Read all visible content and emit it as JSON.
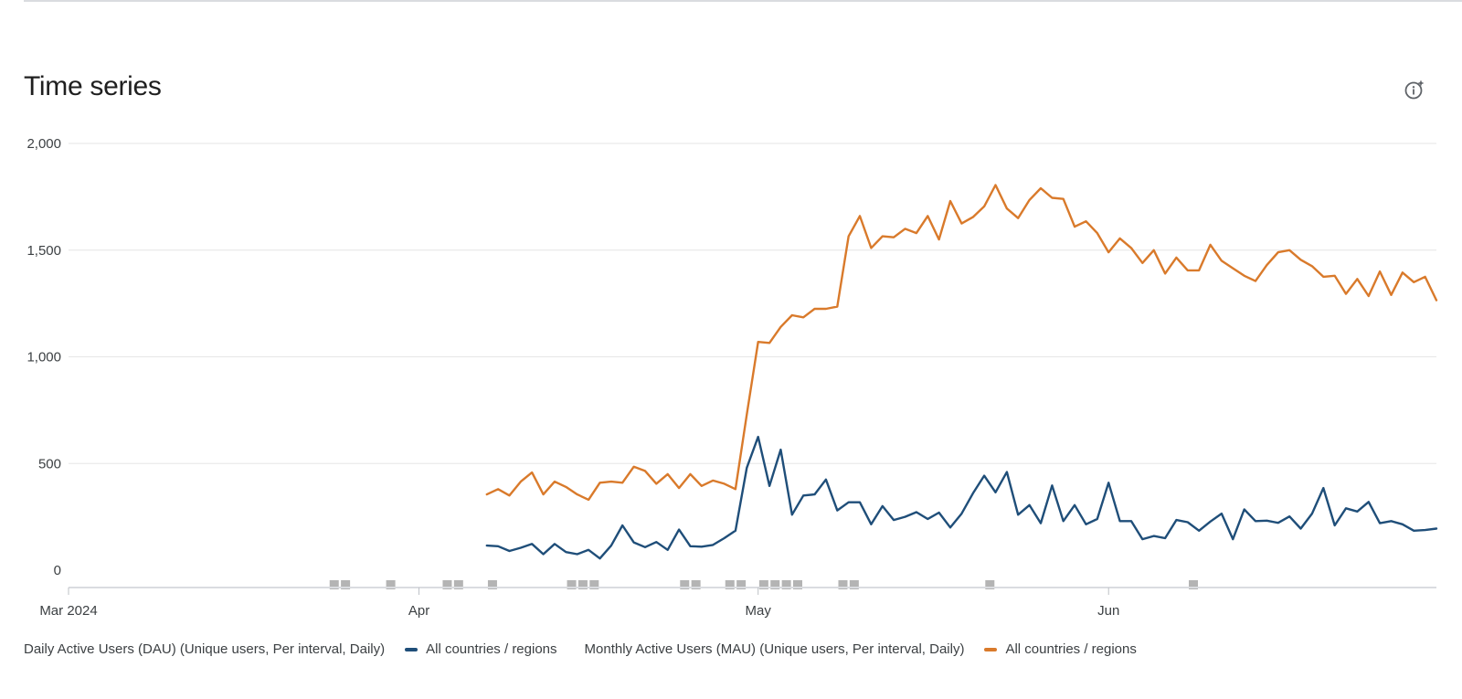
{
  "card": {
    "title": "Time series",
    "info_icon": "info-sparkle-icon"
  },
  "legend": {
    "dau_metric": "Daily Active Users (DAU) (Unique users, Per interval, Daily)",
    "dau_series": "All countries / regions",
    "mau_metric": "Monthly Active Users (MAU) (Unique users, Per interval, Daily)",
    "mau_series": "All countries / regions"
  },
  "colors": {
    "dau": "#1f4e79",
    "mau": "#d97a2b",
    "grid": "#e6e6e6",
    "marker": "#b4b4b4"
  },
  "chart_data": {
    "type": "line",
    "title": "Time series",
    "xlabel": "",
    "ylabel": "",
    "xlim": [
      "2024-03-01",
      "2024-06-30"
    ],
    "ylim": [
      0,
      2000
    ],
    "yticks": [
      0,
      500,
      1000,
      1500,
      2000
    ],
    "ytick_labels": [
      "0",
      "500",
      "1,000",
      "1,500",
      "2,000"
    ],
    "xticks": [
      "2024-03-01",
      "2024-04-01",
      "2024-05-01",
      "2024-06-01"
    ],
    "xtick_labels": [
      "Mar 2024",
      "Apr",
      "May",
      "Jun"
    ],
    "grid": true,
    "legend_position": "bottom",
    "start_date": "2024-04-07",
    "series": [
      {
        "name": "All countries / regions",
        "metric": "Daily Active Users (DAU) (Unique users, Per interval, Daily)",
        "values": [
          115,
          112,
          90,
          105,
          123,
          75,
          123,
          85,
          75,
          95,
          55,
          115,
          210,
          130,
          108,
          132,
          95,
          190,
          112,
          110,
          118,
          150,
          185,
          480,
          625,
          395,
          565,
          260,
          350,
          355,
          425,
          280,
          318,
          318,
          215,
          300,
          235,
          250,
          272,
          240,
          270,
          200,
          265,
          360,
          443,
          365,
          460,
          260,
          305,
          220,
          397,
          230,
          305,
          215,
          240,
          410,
          230,
          230,
          145,
          160,
          150,
          235,
          225,
          185,
          228,
          265,
          145,
          285,
          230,
          232,
          222,
          252,
          195,
          265,
          385,
          210,
          290,
          275,
          320,
          220,
          230,
          215,
          185,
          188,
          195
        ]
      },
      {
        "name": "All countries / regions",
        "metric": "Monthly Active Users (MAU) (Unique users, Per interval, Daily)",
        "values": [
          355,
          380,
          350,
          415,
          458,
          355,
          415,
          390,
          355,
          330,
          410,
          415,
          410,
          485,
          465,
          405,
          450,
          385,
          450,
          395,
          420,
          405,
          380,
          730,
          1070,
          1065,
          1140,
          1195,
          1185,
          1225,
          1225,
          1235,
          1565,
          1660,
          1510,
          1565,
          1560,
          1600,
          1580,
          1660,
          1550,
          1730,
          1625,
          1655,
          1705,
          1805,
          1695,
          1650,
          1735,
          1790,
          1745,
          1740,
          1610,
          1635,
          1580,
          1490,
          1555,
          1510,
          1440,
          1500,
          1390,
          1465,
          1405,
          1405,
          1525,
          1450,
          1415,
          1380,
          1355,
          1430,
          1490,
          1500,
          1455,
          1425,
          1375,
          1380,
          1295,
          1365,
          1285,
          1400,
          1290,
          1395,
          1350,
          1375,
          1265
        ]
      }
    ],
    "annotation_markers": [
      "2024-03-24",
      "2024-03-25",
      "2024-03-29",
      "2024-04-03",
      "2024-04-04",
      "2024-04-07",
      "2024-04-14",
      "2024-04-15",
      "2024-04-16",
      "2024-04-24",
      "2024-04-25",
      "2024-04-28",
      "2024-04-29",
      "2024-05-01",
      "2024-05-02",
      "2024-05-03",
      "2024-05-04",
      "2024-05-08",
      "2024-05-09",
      "2024-05-21",
      "2024-06-08"
    ]
  }
}
